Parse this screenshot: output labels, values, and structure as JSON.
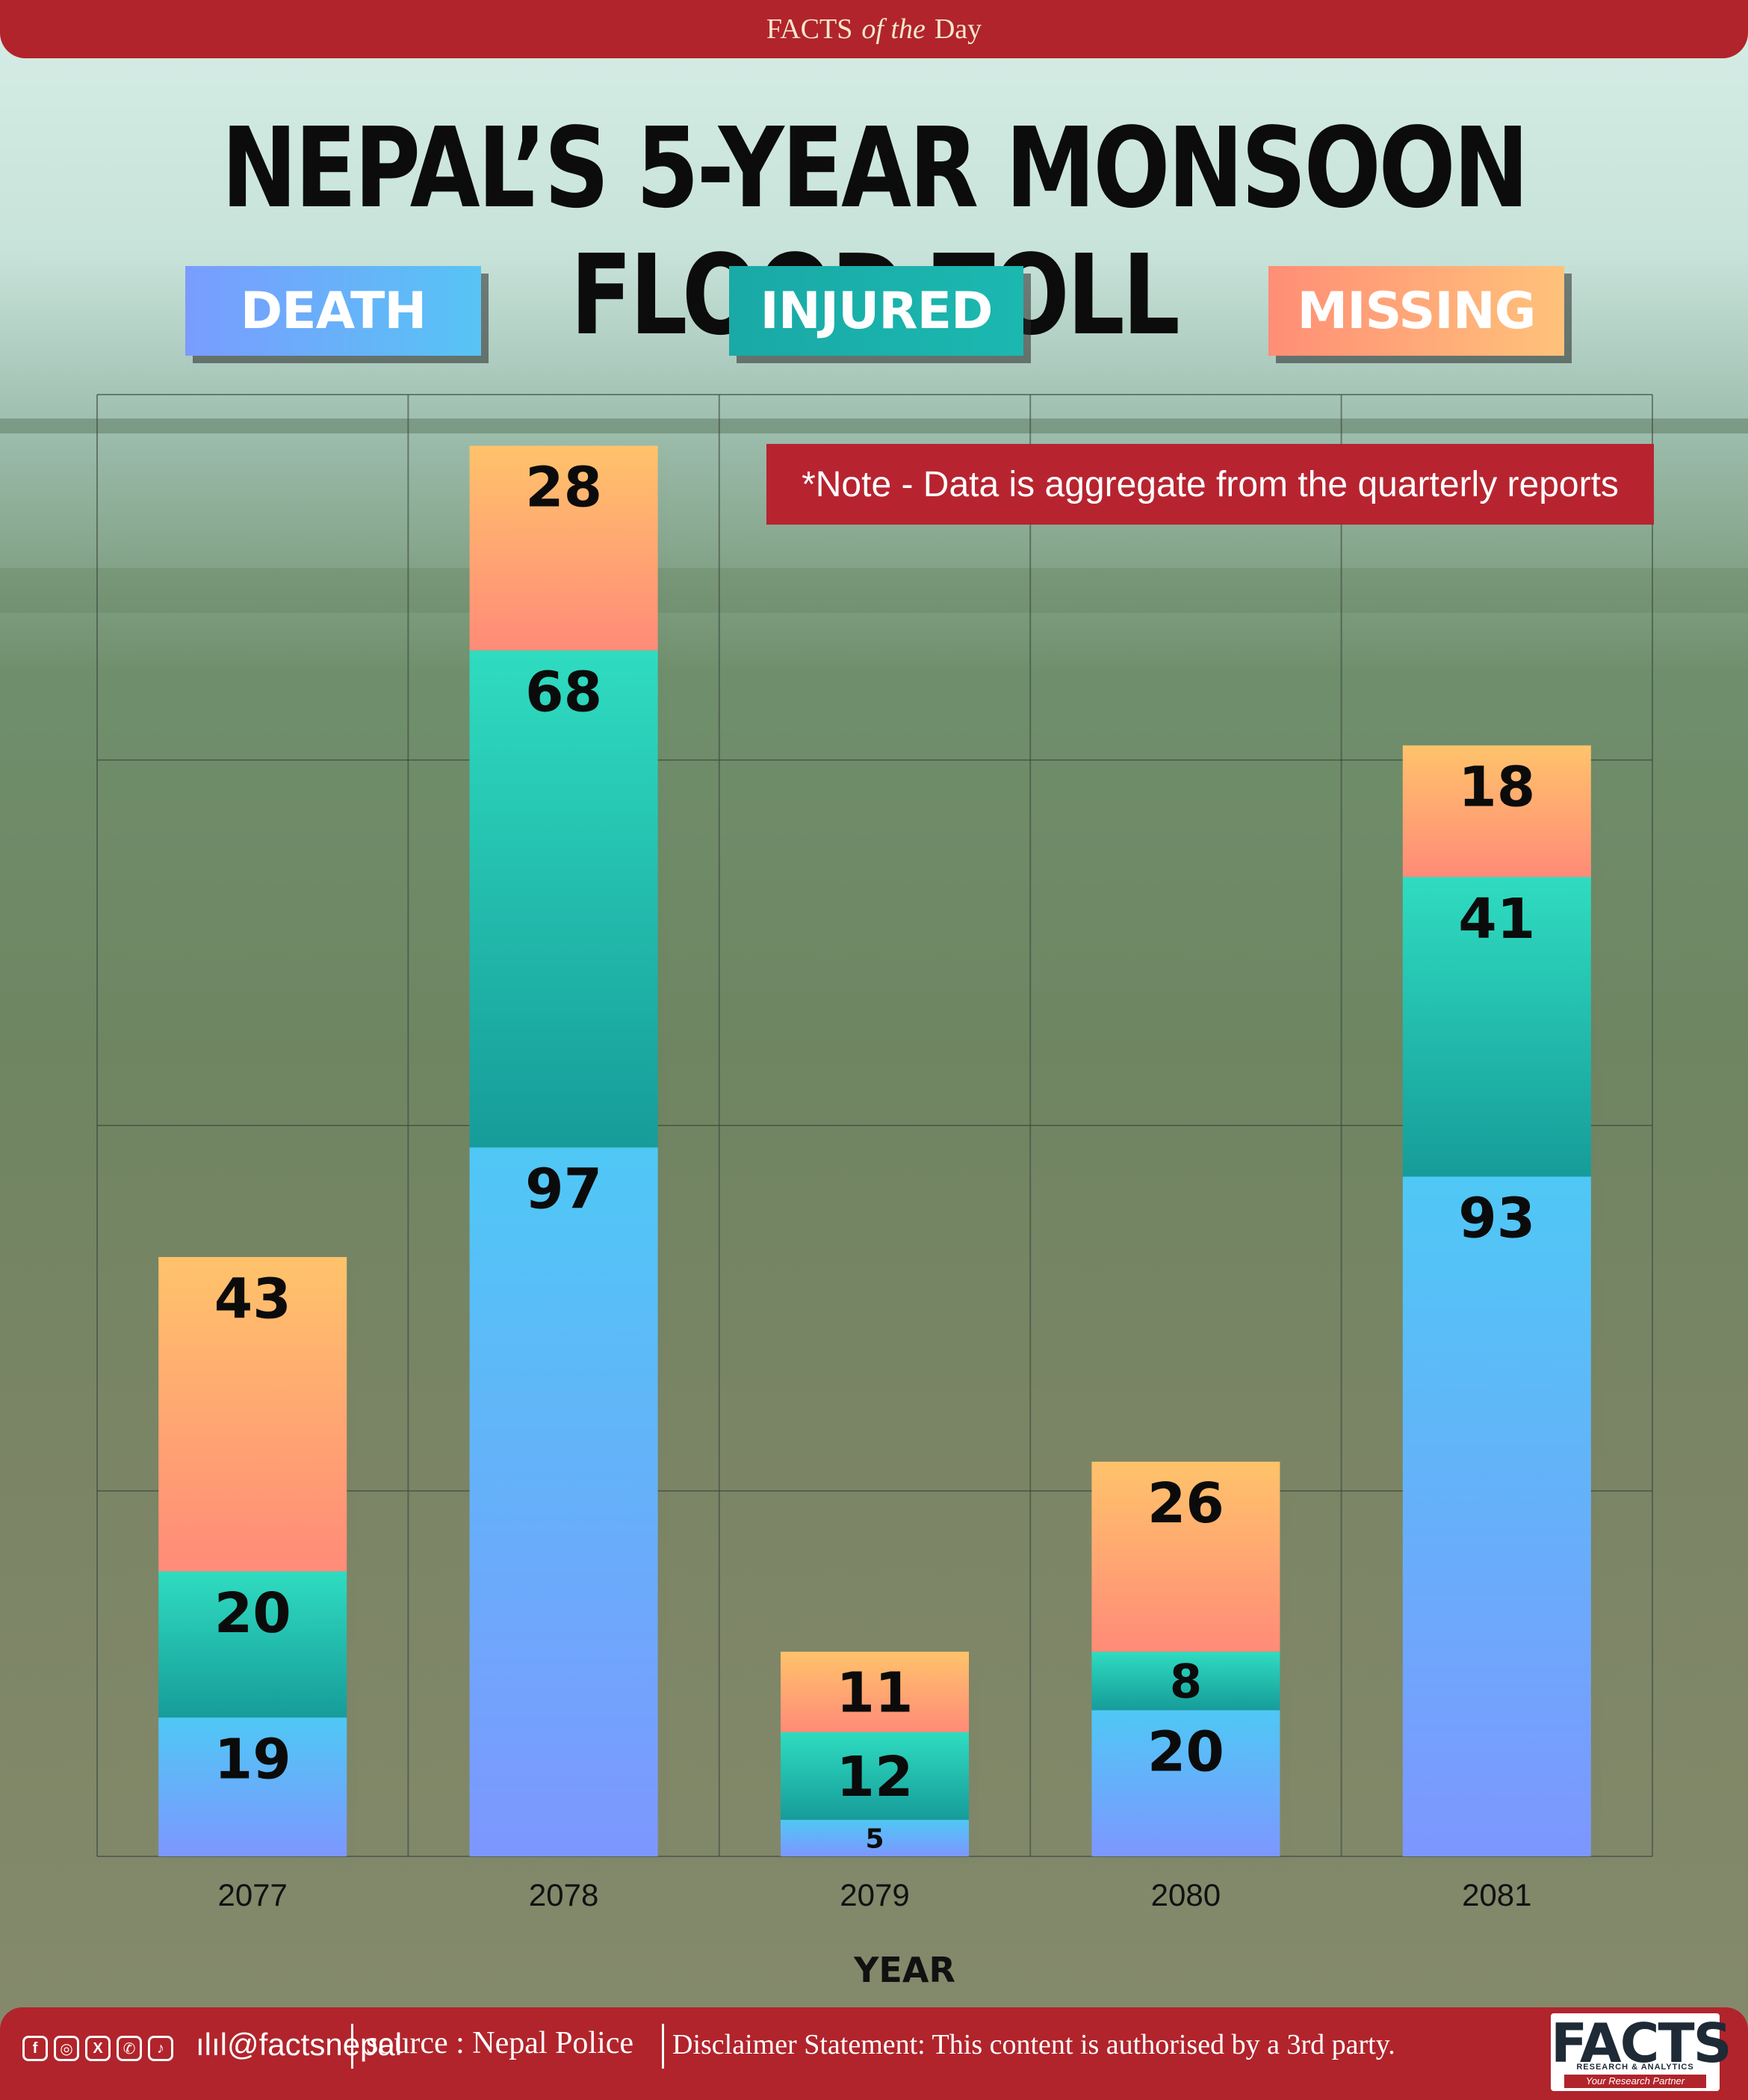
{
  "banner": {
    "facts": "FACTS",
    "of_the": "of the",
    "day": "Day"
  },
  "title": "NEPAL’S 5-YEAR MONSOON FLOOD TOLL",
  "legend": {
    "death": "DEATH",
    "injured": "INJURED",
    "missing": "MISSING"
  },
  "note": "*Note - Data is aggregate from the quarterly reports",
  "colors": {
    "death": [
      "#7d97ff",
      "#4fc8f5"
    ],
    "injured": [
      "#169c9a",
      "#2fdcc0"
    ],
    "missing": [
      "#ff8b78",
      "#ffc36b"
    ],
    "banner": "#b1242b"
  },
  "chart_data": {
    "type": "bar",
    "stacked": true,
    "categories": [
      "2077",
      "2078",
      "2079",
      "2080",
      "2081"
    ],
    "series": [
      {
        "name": "DEATH",
        "values": [
          19,
          97,
          5,
          20,
          93
        ]
      },
      {
        "name": "INJURED",
        "values": [
          20,
          68,
          12,
          8,
          41
        ]
      },
      {
        "name": "MISSING",
        "values": [
          43,
          28,
          11,
          26,
          18
        ]
      }
    ],
    "xlabel": "YEAR",
    "ylabel": "",
    "grid": true,
    "ylim": [
      0,
      200
    ],
    "legend_position": "top"
  },
  "footer": {
    "social_icons": [
      "facebook-icon",
      "instagram-icon",
      "x-icon",
      "viber-icon",
      "tiktok-icon"
    ],
    "handle": "@factsnepal",
    "source": "source : Nepal Police",
    "disclaimer": "Disclaimer Statement: This content is authorised by a 3rd party.",
    "logo": {
      "word": "FACTS",
      "sub": "RESEARCH & ANALYTICS",
      "tagline": "Your Research Partner"
    }
  }
}
